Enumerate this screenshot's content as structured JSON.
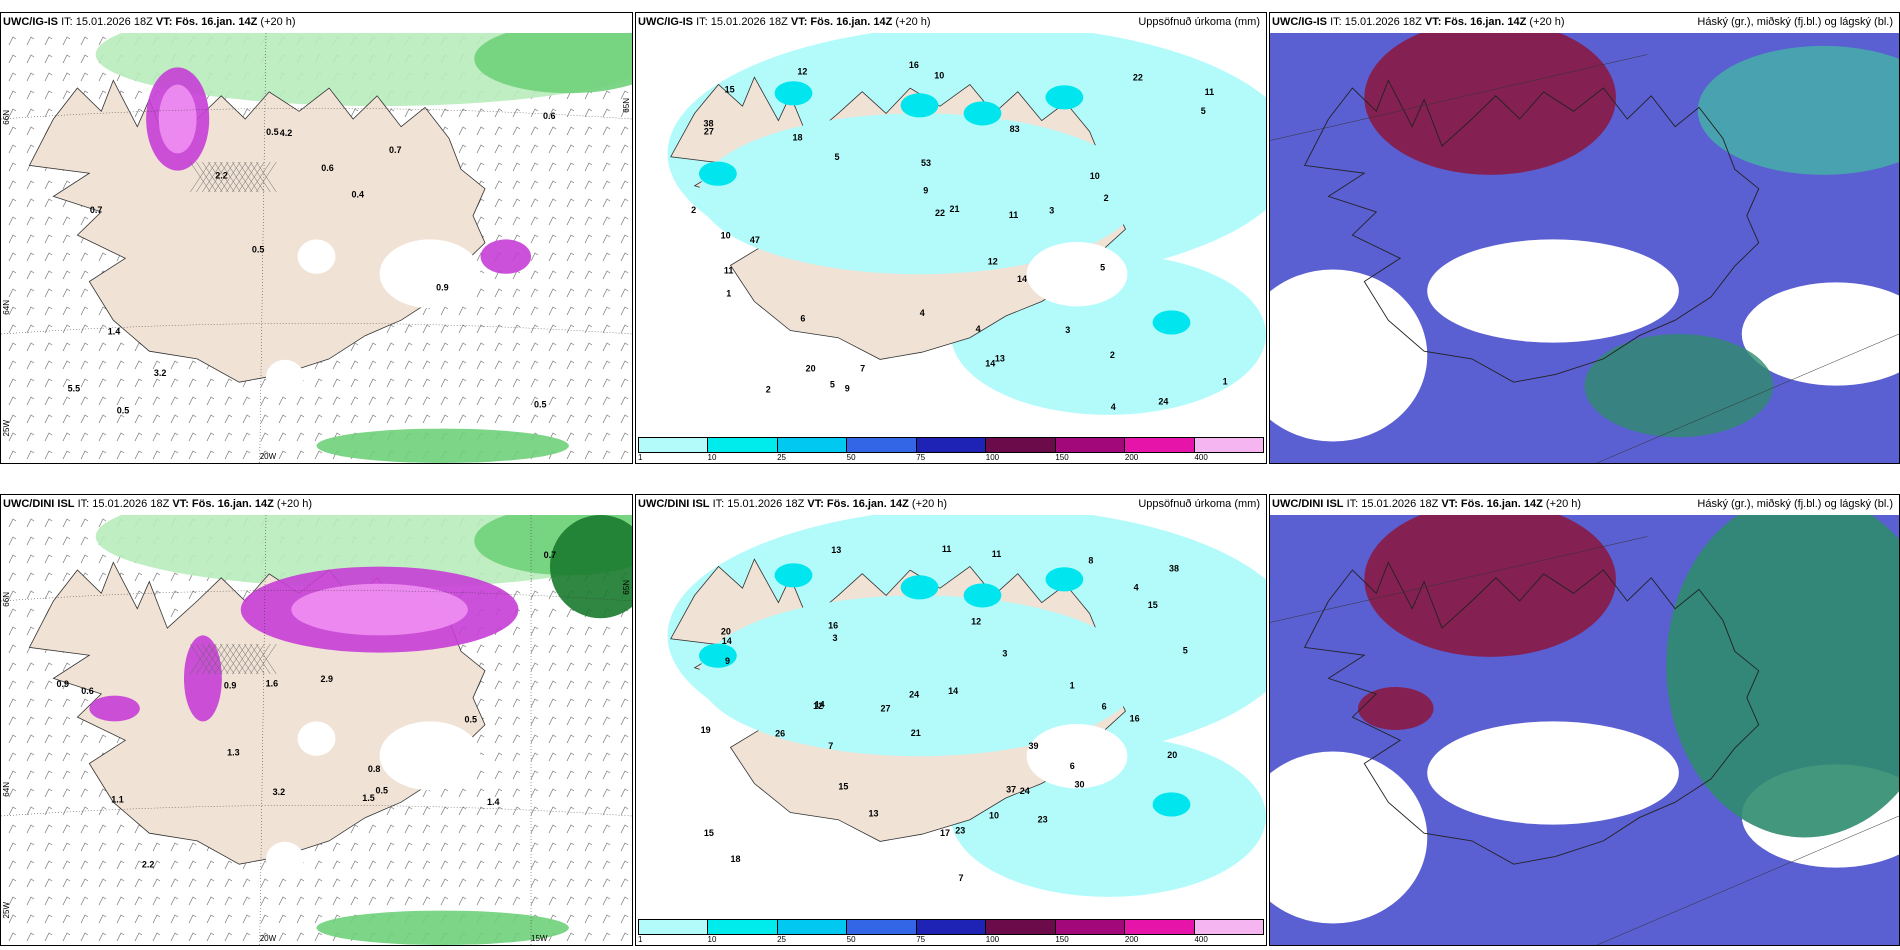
{
  "panels": [
    {
      "model": "UWC/IG-IS",
      "it": "IT: 15.01.2026 18Z",
      "vt": "VT: Fös. 16.jan. 14Z",
      "offset": "(+20 h)",
      "right": "",
      "type": "snow"
    },
    {
      "model": "UWC/IG-IS",
      "it": "IT: 15.01.2026 18Z",
      "vt": "VT: Fös. 16.jan. 14Z",
      "offset": "(+20 h)",
      "right": "Uppsöfnuð úrkoma (mm)",
      "type": "precip"
    },
    {
      "model": "UWC/IG-IS",
      "it": "IT: 15.01.2026 18Z",
      "vt": "VT: Fös. 16.jan. 14Z",
      "offset": "(+20 h)",
      "right": "Háský (gr.), miðský (fj.bl.) og lágský (bl.)",
      "type": "cloud"
    },
    {
      "model": "UWC/DINI ISL",
      "it": "IT: 15.01.2026 18Z",
      "vt": "VT: Fös. 16.jan. 14Z",
      "offset": "(+20 h)",
      "right": "",
      "type": "snow"
    },
    {
      "model": "UWC/DINI ISL",
      "it": "IT: 15.01.2026 18Z",
      "vt": "VT: Fös. 16.jan. 14Z",
      "offset": "(+20 h)",
      "right": "Uppsöfnuð úrkoma (mm)",
      "type": "precip"
    },
    {
      "model": "UWC/DINI ISL",
      "it": "IT: 15.01.2026 18Z",
      "vt": "VT: Fös. 16.jan. 14Z",
      "offset": "(+20 h)",
      "right": "Háský (gr.), miðský (fj.bl.) og lágský (bl.)",
      "type": "cloud"
    }
  ],
  "legend": {
    "ticks": [
      "1",
      "10",
      "25",
      "50",
      "75",
      "100",
      "150",
      "200",
      "400"
    ],
    "colors": [
      "#b3fbfb",
      "#00ebeb",
      "#00c8f0",
      "#3366e6",
      "#1f23b5",
      "#6b0b4a",
      "#a3087a",
      "#e614a8",
      "#f5b5f0"
    ]
  },
  "axis_labels": {
    "lat_left": [
      "66N",
      "64N",
      "25W"
    ],
    "lon_bottom_top": [
      "20W"
    ],
    "lon_bottom_bottom": [
      "20W",
      "15W"
    ],
    "lat_right": "65N"
  },
  "colors": {
    "land": "#f0e2d5",
    "snow_green_light": "#b9ecbc",
    "snow_green": "#6fd07a",
    "snow_green_dark": "#1a7a2e",
    "snow_purple": "#c73ed6",
    "snow_pink": "#f08ff2",
    "precip_light": "#b3fbfb",
    "precip_mid": "#00e5ee",
    "cloud_blue": "#5a5fd1",
    "cloud_red": "#8a1944",
    "cloud_green": "#2f8c6e",
    "cloud_teal": "#3ccf9a"
  },
  "values": {
    "snow_top": [
      "0.5",
      "0.7",
      "0.6",
      "0.5",
      "0.7",
      "0.5",
      "0.5",
      "0.6",
      "1.4",
      "2.2",
      "5.5",
      "3.2",
      "4.2",
      "0.4",
      "0.9"
    ],
    "snow_bottom": [
      "0.5",
      "0.6",
      "0.7",
      "1.5",
      "1.3",
      "1.6",
      "0.5",
      "0.8",
      "0.9",
      "2.9",
      "2.2",
      "0.9",
      "1.1",
      "3.2",
      "1.4"
    ],
    "precip_top": [
      "2",
      "10",
      "10",
      "11",
      "38",
      "24",
      "47",
      "83",
      "53",
      "22",
      "21",
      "5",
      "16",
      "27",
      "18",
      "6",
      "13",
      "10",
      "12",
      "4",
      "3",
      "2",
      "5",
      "9",
      "20",
      "22",
      "14",
      "12",
      "9",
      "14",
      "11",
      "4",
      "11",
      "2",
      "5",
      "1",
      "2",
      "15",
      "7",
      "5",
      "4",
      "3",
      "1"
    ],
    "precip_bottom": [
      "11",
      "14",
      "23",
      "37",
      "27",
      "39",
      "23",
      "38",
      "30",
      "24",
      "21",
      "14",
      "15",
      "16",
      "12",
      "4",
      "6",
      "5",
      "3",
      "7",
      "8",
      "20",
      "18",
      "13",
      "9",
      "10",
      "15",
      "17",
      "19",
      "26",
      "24",
      "16",
      "20",
      "12",
      "13",
      "14",
      "3",
      "1",
      "7",
      "15",
      "11",
      "6"
    ]
  }
}
